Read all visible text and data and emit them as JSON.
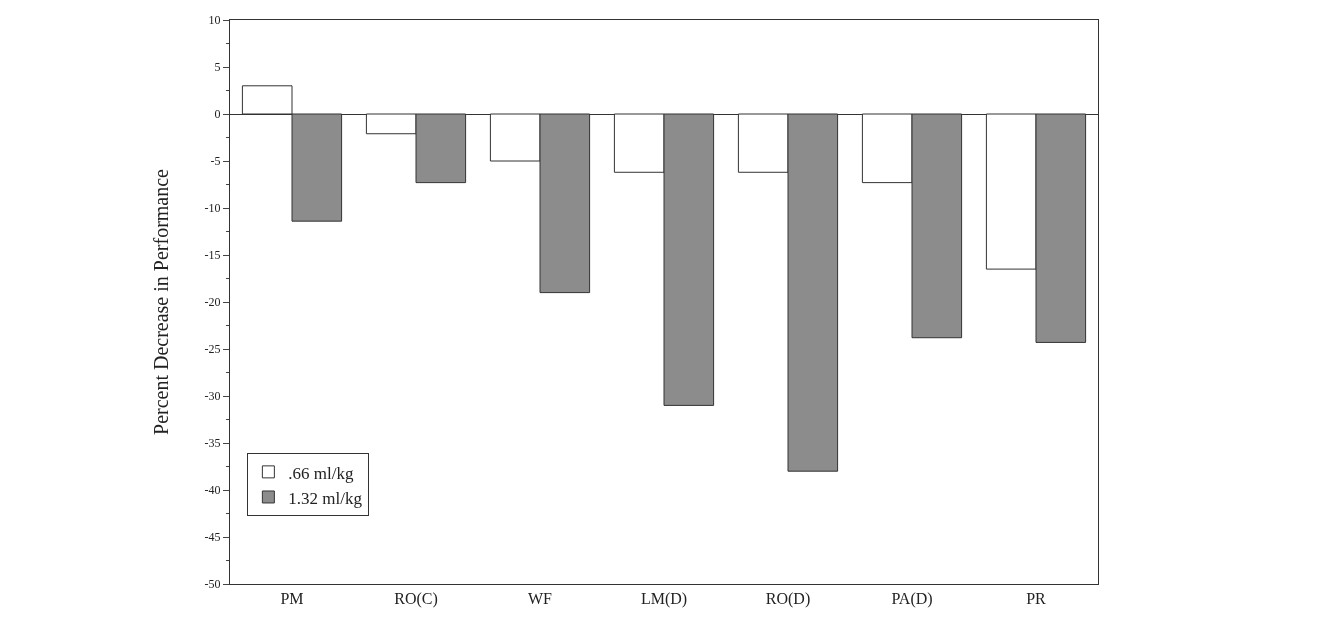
{
  "chart_data": {
    "type": "bar",
    "ylabel": "Percent Decrease in Performance",
    "categories": [
      "PM",
      "RO(C)",
      "WF",
      "LM(D)",
      "RO(D)",
      "PA(D)",
      "PR"
    ],
    "series": [
      {
        "name": ".66 ml/kg",
        "color": "#ffffff",
        "values": [
          3,
          -2.1,
          -5.0,
          -6.2,
          -6.2,
          -7.3,
          -16.5
        ]
      },
      {
        "name": "1.32 ml/kg",
        "color": "#8c8c8c",
        "values": [
          -11.4,
          -7.3,
          -19.0,
          -31.0,
          -38.0,
          -23.8,
          -24.3
        ]
      }
    ],
    "ylim": [
      -50,
      10
    ],
    "yticks": [
      10,
      5,
      0,
      -5,
      -10,
      -15,
      -20,
      -25,
      -30,
      -35,
      -40,
      -45,
      -50
    ],
    "legend": "bottom left"
  }
}
